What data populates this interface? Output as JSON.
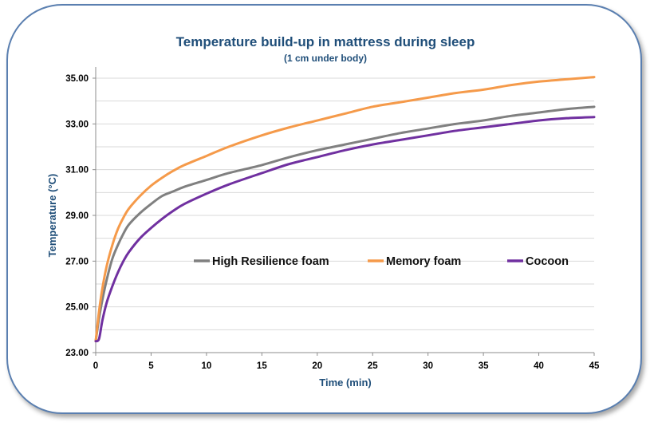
{
  "chart_data": {
    "type": "line",
    "title": "Temperature build-up in mattress during sleep",
    "subtitle": "(1 cm under body)",
    "xlabel": "Time (min)",
    "ylabel": "Temperature (°C)",
    "xlim": [
      0,
      45
    ],
    "ylim": [
      23,
      36
    ],
    "x_ticks": [
      "0",
      "5",
      "10",
      "15",
      "20",
      "25",
      "30",
      "35",
      "40",
      "45"
    ],
    "y_ticks": [
      "23.00",
      "25.00",
      "27.00",
      "29.00",
      "31.00",
      "33.00",
      "35.00"
    ],
    "grid": "horizontal",
    "legend": "inside-center",
    "series": [
      {
        "name": "High Resilience foam",
        "color": "#808080",
        "x": [
          0,
          0.3,
          0.6,
          1,
          1.5,
          2,
          2.5,
          3,
          4,
          5,
          6,
          7,
          8,
          10,
          12,
          15,
          17.5,
          20,
          22.5,
          25,
          27.5,
          30,
          32.5,
          35,
          37.5,
          40,
          42.5,
          45
        ],
        "y": [
          23.5,
          24.5,
          25.3,
          26.2,
          27.1,
          27.7,
          28.2,
          28.6,
          29.1,
          29.5,
          29.85,
          30.05,
          30.25,
          30.55,
          30.85,
          31.2,
          31.55,
          31.85,
          32.1,
          32.35,
          32.6,
          32.8,
          33.0,
          33.15,
          33.35,
          33.5,
          33.65,
          33.75
        ]
      },
      {
        "name": "Memory foam",
        "color": "#f59a4a",
        "x": [
          0,
          0.3,
          0.6,
          1,
          1.5,
          2,
          2.5,
          3,
          4,
          5,
          6,
          7,
          8,
          10,
          12,
          15,
          17.5,
          20,
          22.5,
          25,
          27.5,
          30,
          32.5,
          35,
          37.5,
          40,
          42.5,
          45
        ],
        "y": [
          23.5,
          24.8,
          25.8,
          26.8,
          27.7,
          28.4,
          28.9,
          29.3,
          29.85,
          30.3,
          30.65,
          30.95,
          31.2,
          31.6,
          32.0,
          32.5,
          32.85,
          33.15,
          33.45,
          33.75,
          33.95,
          34.15,
          34.35,
          34.5,
          34.7,
          34.85,
          34.95,
          35.05
        ]
      },
      {
        "name": "Cocoon",
        "color": "#7030a0",
        "x": [
          0,
          0.3,
          0.6,
          1,
          1.5,
          2,
          2.5,
          3,
          4,
          5,
          6,
          7,
          8,
          10,
          12,
          15,
          17.5,
          20,
          22.5,
          25,
          27.5,
          30,
          32.5,
          35,
          37.5,
          40,
          42.5,
          45
        ],
        "y": [
          23.5,
          23.6,
          24.4,
          25.2,
          25.9,
          26.5,
          27.0,
          27.4,
          28.0,
          28.45,
          28.85,
          29.2,
          29.5,
          29.95,
          30.35,
          30.85,
          31.25,
          31.55,
          31.85,
          32.1,
          32.3,
          32.5,
          32.7,
          32.85,
          33.0,
          33.15,
          33.25,
          33.3
        ]
      }
    ]
  }
}
